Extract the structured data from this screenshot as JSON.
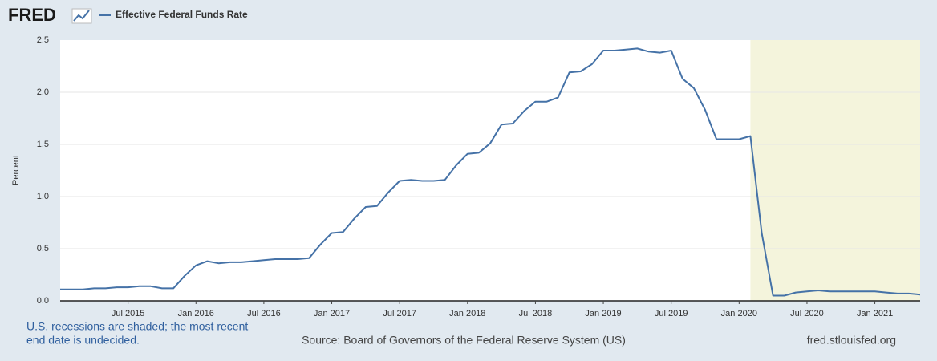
{
  "logo": "FRED",
  "chart_data": {
    "type": "line",
    "y_label": "Percent",
    "x": [
      "2015-01",
      "2015-02",
      "2015-03",
      "2015-04",
      "2015-05",
      "2015-06",
      "2015-07",
      "2015-08",
      "2015-09",
      "2015-10",
      "2015-11",
      "2015-12",
      "2016-01",
      "2016-02",
      "2016-03",
      "2016-04",
      "2016-05",
      "2016-06",
      "2016-07",
      "2016-08",
      "2016-09",
      "2016-10",
      "2016-11",
      "2016-12",
      "2017-01",
      "2017-02",
      "2017-03",
      "2017-04",
      "2017-05",
      "2017-06",
      "2017-07",
      "2017-08",
      "2017-09",
      "2017-10",
      "2017-11",
      "2017-12",
      "2018-01",
      "2018-02",
      "2018-03",
      "2018-04",
      "2018-05",
      "2018-06",
      "2018-07",
      "2018-08",
      "2018-09",
      "2018-10",
      "2018-11",
      "2018-12",
      "2019-01",
      "2019-02",
      "2019-03",
      "2019-04",
      "2019-05",
      "2019-06",
      "2019-07",
      "2019-08",
      "2019-09",
      "2019-10",
      "2019-11",
      "2019-12",
      "2020-01",
      "2020-02",
      "2020-03",
      "2020-04",
      "2020-05",
      "2020-06",
      "2020-07",
      "2020-08",
      "2020-09",
      "2020-10",
      "2020-11",
      "2020-12",
      "2021-01",
      "2021-02",
      "2021-03",
      "2021-04",
      "2021-05"
    ],
    "series": [
      {
        "name": "Effective Federal Funds Rate",
        "color": "#4572a7",
        "values": [
          0.11,
          0.11,
          0.11,
          0.12,
          0.12,
          0.13,
          0.13,
          0.14,
          0.14,
          0.12,
          0.12,
          0.24,
          0.34,
          0.38,
          0.36,
          0.37,
          0.37,
          0.38,
          0.39,
          0.4,
          0.4,
          0.4,
          0.41,
          0.54,
          0.65,
          0.66,
          0.79,
          0.9,
          0.91,
          1.04,
          1.15,
          1.16,
          1.15,
          1.15,
          1.16,
          1.3,
          1.41,
          1.42,
          1.51,
          1.69,
          1.7,
          1.82,
          1.91,
          1.91,
          1.95,
          2.19,
          2.2,
          2.27,
          2.4,
          2.4,
          2.41,
          2.42,
          2.39,
          2.38,
          2.4,
          2.13,
          2.04,
          1.83,
          1.55,
          1.55,
          1.55,
          1.58,
          0.65,
          0.05,
          0.05,
          0.08,
          0.09,
          0.1,
          0.09,
          0.09,
          0.09,
          0.09,
          0.09,
          0.08,
          0.07,
          0.07,
          0.06
        ]
      }
    ],
    "xlim": [
      "2015-01",
      "2021-05"
    ],
    "xticks": [
      {
        "value": "2015-07",
        "label": "Jul 2015"
      },
      {
        "value": "2016-01",
        "label": "Jan 2016"
      },
      {
        "value": "2016-07",
        "label": "Jul 2016"
      },
      {
        "value": "2017-01",
        "label": "Jan 2017"
      },
      {
        "value": "2017-07",
        "label": "Jul 2017"
      },
      {
        "value": "2018-01",
        "label": "Jan 2018"
      },
      {
        "value": "2018-07",
        "label": "Jul 2018"
      },
      {
        "value": "2019-01",
        "label": "Jan 2019"
      },
      {
        "value": "2019-07",
        "label": "Jul 2019"
      },
      {
        "value": "2020-01",
        "label": "Jan 2020"
      },
      {
        "value": "2020-07",
        "label": "Jul 2020"
      },
      {
        "value": "2021-01",
        "label": "Jan 2021"
      }
    ],
    "ylim": [
      0,
      2.5
    ],
    "yticks": [
      {
        "value": 0,
        "label": "0.0"
      },
      0.5,
      {
        "value": 1,
        "label": "1.0"
      },
      1.5,
      {
        "value": 2,
        "label": "2.0"
      },
      2.5
    ],
    "grid": true,
    "recession": {
      "start": "2020-02",
      "color": "#f4f4dc"
    }
  },
  "footer": {
    "recession_note": [
      "U.S. recessions are shaded; the most recent",
      "end date is undecided."
    ],
    "source": "Source: Board of Governors of the Federal Reserve System (US)",
    "url": "fred.stlouisfed.org"
  }
}
